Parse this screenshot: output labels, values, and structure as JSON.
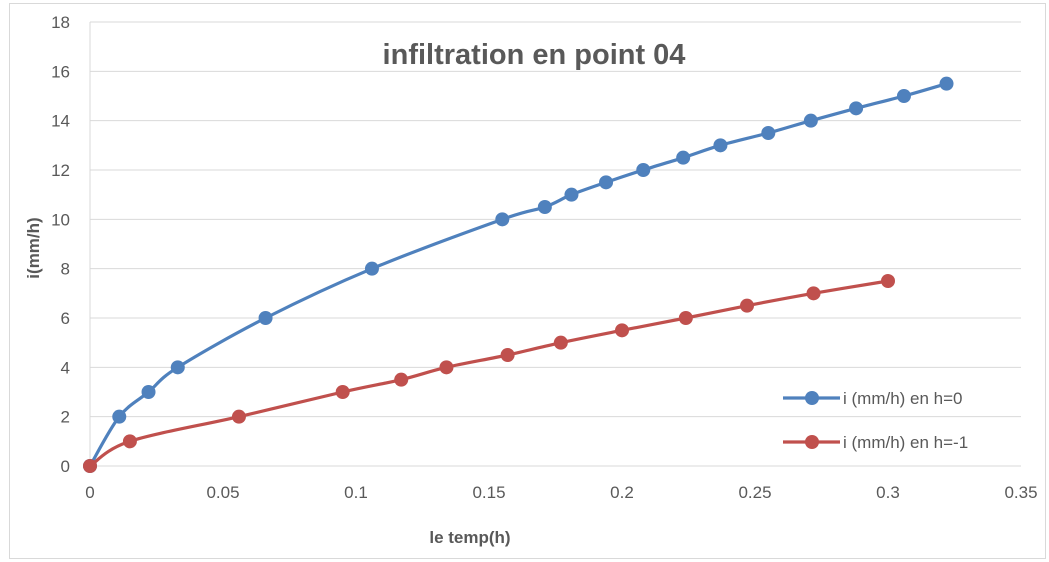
{
  "chart_data": {
    "type": "scatter",
    "title": "infiltration en point 04",
    "xlabel": "le temp(h)",
    "ylabel": "i(mm/h)",
    "xlim": [
      0,
      0.35
    ],
    "ylim": [
      0,
      18
    ],
    "x_ticks": [
      "0",
      "0.05",
      "0.1",
      "0.15",
      "0.2",
      "0.25",
      "0.3",
      "0.35"
    ],
    "y_ticks": [
      "0",
      "2",
      "4",
      "6",
      "8",
      "10",
      "12",
      "14",
      "16",
      "18"
    ],
    "grid": "horizontal",
    "legend_position": "bottom-right",
    "series": [
      {
        "name": "i (mm/h) en h=0",
        "color": "#4f81bd",
        "points": [
          [
            0,
            0
          ],
          [
            0.011,
            2
          ],
          [
            0.022,
            3
          ],
          [
            0.033,
            4
          ],
          [
            0.066,
            6
          ],
          [
            0.106,
            8
          ],
          [
            0.155,
            10
          ],
          [
            0.171,
            10.5
          ],
          [
            0.181,
            11
          ],
          [
            0.194,
            11.5
          ],
          [
            0.208,
            12
          ],
          [
            0.223,
            12.5
          ],
          [
            0.237,
            13
          ],
          [
            0.255,
            13.5
          ],
          [
            0.271,
            14
          ],
          [
            0.288,
            14.5
          ],
          [
            0.306,
            15
          ],
          [
            0.322,
            15.5
          ]
        ]
      },
      {
        "name": "i (mm/h) en h=-1",
        "color": "#c0504d",
        "points": [
          [
            0,
            0
          ],
          [
            0.015,
            1
          ],
          [
            0.056,
            2
          ],
          [
            0.095,
            3
          ],
          [
            0.117,
            3.5
          ],
          [
            0.134,
            4
          ],
          [
            0.157,
            4.5
          ],
          [
            0.177,
            5
          ],
          [
            0.2,
            5.5
          ],
          [
            0.224,
            6
          ],
          [
            0.247,
            6.5
          ],
          [
            0.272,
            7
          ],
          [
            0.3,
            7.5
          ]
        ]
      }
    ]
  }
}
